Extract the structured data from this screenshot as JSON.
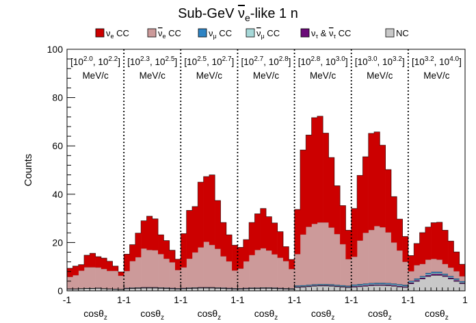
{
  "chart_data": {
    "type": "bar",
    "stacked": true,
    "title_parts": [
      "Sub-GeV ",
      "ν",
      "e",
      "-like 1 n"
    ],
    "ylabel": "Counts",
    "ylim": [
      0,
      100
    ],
    "yticks": [
      "0",
      "20",
      "40",
      "60",
      "80",
      "100"
    ],
    "xlabel_parts": [
      "cosθ",
      "z"
    ],
    "x_edge_labels": [
      "-1",
      "1-1",
      "1-1",
      "1-1",
      "1-1",
      "1-1",
      "1-1",
      "1"
    ],
    "bins_per_panel": 10,
    "panels": [
      {
        "range": "[10^2.0, 10^2.2]",
        "lo_base": "[10",
        "lo_exp": "2.0",
        "hi_base": ", 10",
        "hi_exp": "2.2",
        "close": "]",
        "unit": "MeV/c"
      },
      {
        "range": "[10^2.3, 10^2.5]",
        "lo_base": "[10",
        "lo_exp": "2.3",
        "hi_base": ", 10",
        "hi_exp": "2.5",
        "close": "]",
        "unit": "MeV/c"
      },
      {
        "range": "[10^2.5, 10^2.7]",
        "lo_base": "[10",
        "lo_exp": "2.5",
        "hi_base": ", 10",
        "hi_exp": "2.7",
        "close": "]",
        "unit": "MeV/c"
      },
      {
        "range": "[10^2.7, 10^2.8]",
        "lo_base": "[10",
        "lo_exp": "2.7",
        "hi_base": ", 10",
        "hi_exp": "2.8",
        "close": "]",
        "unit": "MeV/c"
      },
      {
        "range": "[10^2.8, 10^3.0]",
        "lo_base": "[10",
        "lo_exp": "2.8",
        "hi_base": ", 10",
        "hi_exp": "3.0",
        "close": "]",
        "unit": "MeV/c"
      },
      {
        "range": "[10^3.0, 10^3.2]",
        "lo_base": "[10",
        "lo_exp": "3.0",
        "hi_base": ", 10",
        "hi_exp": "3.2",
        "close": "]",
        "unit": "MeV/c"
      },
      {
        "range": "[10^3.2, 10^4.0]",
        "lo_base": "[10",
        "lo_exp": "3.2",
        "hi_base": ", 10",
        "hi_exp": "4.0",
        "close": "]",
        "unit": "MeV/c"
      }
    ],
    "series": [
      {
        "name": "NC",
        "label_parts": [
          "NC"
        ],
        "color": "#c8c8c8",
        "values": [
          0.8,
          0.8,
          0.9,
          1.0,
          1.0,
          1.1,
          0.9,
          0.8,
          0.7,
          0.6,
          0.9,
          1.0,
          1.1,
          1.2,
          1.2,
          1.2,
          1.1,
          1.0,
          0.9,
          0.8,
          0.9,
          1.0,
          1.1,
          1.2,
          1.2,
          1.2,
          1.1,
          1.0,
          0.9,
          0.8,
          0.8,
          0.9,
          1.0,
          1.0,
          1.1,
          1.1,
          1.0,
          0.9,
          0.8,
          0.7,
          1.5,
          1.6,
          1.8,
          2.0,
          2.1,
          2.1,
          2.0,
          1.8,
          1.6,
          1.4,
          1.6,
          1.8,
          2.0,
          2.2,
          2.3,
          2.3,
          2.2,
          2.0,
          1.7,
          1.5,
          3.0,
          4.0,
          5.0,
          6.0,
          6.5,
          6.5,
          6.0,
          5.0,
          4.0,
          3.0
        ]
      },
      {
        "name": "ν̄_τ + ν_τ CC",
        "label_parts": [
          "ν",
          "τ",
          " & ",
          "ν",
          "τ",
          " CC"
        ],
        "color": "#6a0a78",
        "values": [
          0.05,
          0.05,
          0.05,
          0.05,
          0.05,
          0.05,
          0.05,
          0.05,
          0.05,
          0.05,
          0.1,
          0.1,
          0.1,
          0.1,
          0.1,
          0.1,
          0.1,
          0.1,
          0.1,
          0.1,
          0.1,
          0.1,
          0.1,
          0.1,
          0.1,
          0.1,
          0.1,
          0.1,
          0.1,
          0.1,
          0.1,
          0.1,
          0.1,
          0.1,
          0.1,
          0.1,
          0.1,
          0.1,
          0.1,
          0.1,
          0.2,
          0.2,
          0.2,
          0.2,
          0.2,
          0.2,
          0.2,
          0.2,
          0.2,
          0.2,
          0.3,
          0.3,
          0.3,
          0.3,
          0.3,
          0.3,
          0.3,
          0.3,
          0.3,
          0.3,
          0.4,
          0.4,
          0.4,
          0.5,
          0.5,
          0.5,
          0.4,
          0.4,
          0.4,
          0.3
        ]
      },
      {
        "name": "ν̄_μ CC",
        "label_parts": [
          "ν",
          "μ",
          " CC"
        ],
        "color": "#a6d8d8",
        "values": [
          0.05,
          0.05,
          0.05,
          0.05,
          0.05,
          0.05,
          0.05,
          0.05,
          0.05,
          0.05,
          0.1,
          0.1,
          0.1,
          0.1,
          0.1,
          0.1,
          0.1,
          0.1,
          0.1,
          0.1,
          0.1,
          0.1,
          0.1,
          0.1,
          0.1,
          0.1,
          0.1,
          0.1,
          0.1,
          0.1,
          0.1,
          0.1,
          0.1,
          0.1,
          0.1,
          0.1,
          0.1,
          0.1,
          0.1,
          0.1,
          0.2,
          0.2,
          0.2,
          0.2,
          0.2,
          0.2,
          0.2,
          0.2,
          0.2,
          0.2,
          0.3,
          0.3,
          0.3,
          0.3,
          0.3,
          0.3,
          0.3,
          0.3,
          0.3,
          0.3,
          0.3,
          0.3,
          0.3,
          0.4,
          0.4,
          0.4,
          0.3,
          0.3,
          0.3,
          0.3
        ]
      },
      {
        "name": "ν_μ CC",
        "label_parts": [
          "ν",
          "μ",
          " CC"
        ],
        "color": "#2e84c4",
        "values": [
          0.05,
          0.05,
          0.05,
          0.05,
          0.05,
          0.05,
          0.05,
          0.05,
          0.05,
          0.05,
          0.1,
          0.1,
          0.1,
          0.1,
          0.1,
          0.1,
          0.1,
          0.1,
          0.1,
          0.1,
          0.1,
          0.1,
          0.1,
          0.1,
          0.1,
          0.1,
          0.1,
          0.1,
          0.1,
          0.1,
          0.1,
          0.1,
          0.1,
          0.1,
          0.1,
          0.1,
          0.1,
          0.1,
          0.1,
          0.1,
          0.3,
          0.3,
          0.3,
          0.3,
          0.3,
          0.3,
          0.3,
          0.3,
          0.3,
          0.3,
          0.4,
          0.4,
          0.4,
          0.4,
          0.4,
          0.4,
          0.4,
          0.4,
          0.4,
          0.4,
          0.4,
          0.4,
          0.4,
          0.5,
          0.5,
          0.5,
          0.4,
          0.4,
          0.4,
          0.4
        ]
      },
      {
        "name": "ν̄_e CC",
        "label_parts": [
          "ν",
          "e",
          " CC"
        ],
        "color": "#cc9a9a",
        "values": [
          4.8,
          5.5,
          7.3,
          8.6,
          8.6,
          8.4,
          8.0,
          7.3,
          7.4,
          5.5,
          7.0,
          11.0,
          12.5,
          16.0,
          15.4,
          15.3,
          13.8,
          12.0,
          10.6,
          7.5,
          8.5,
          12.0,
          14.5,
          16.5,
          18.8,
          17.5,
          16.0,
          13.0,
          11.0,
          7.3,
          8.1,
          11.0,
          13.5,
          15.6,
          16.2,
          15.3,
          13.8,
          12.5,
          11.2,
          8.0,
          13.0,
          21.0,
          24.0,
          25.0,
          25.5,
          25.5,
          23.5,
          21.0,
          17.0,
          11.0,
          11.5,
          18.0,
          21.0,
          22.0,
          23.5,
          23.0,
          21.0,
          17.0,
          14.0,
          9.5,
          4.0,
          5.5,
          5.0,
          5.5,
          5.3,
          5.0,
          4.0,
          3.5,
          3.0,
          2.0
        ]
      },
      {
        "name": "ν_e CC",
        "label_parts": [
          "ν",
          "e",
          " CC"
        ],
        "color": "#cc0000",
        "values": [
          3.6,
          3.8,
          2.5,
          5.0,
          5.8,
          4.5,
          4.5,
          4.0,
          2.0,
          1.6,
          7.0,
          6.8,
          10.0,
          11.5,
          14.0,
          13.0,
          8.0,
          7.5,
          5.0,
          4.5,
          14.0,
          20.0,
          19.0,
          27.0,
          27.0,
          29.0,
          20.0,
          14.0,
          11.0,
          10.5,
          8.8,
          9.0,
          13.5,
          15.0,
          16.5,
          14.0,
          13.0,
          10.8,
          6.0,
          4.0,
          18.5,
          35.0,
          38.0,
          44.0,
          44.0,
          37.0,
          29.0,
          20.0,
          16.0,
          12.0,
          20.0,
          27.0,
          31.5,
          40.0,
          39.0,
          34.0,
          26.0,
          19.0,
          13.0,
          10.5,
          6.5,
          9.0,
          13.0,
          13.5,
          15.0,
          15.5,
          14.0,
          11.0,
          8.0,
          5.0
        ]
      }
    ],
    "legend_order": [
      5,
      4,
      3,
      2,
      1,
      0
    ]
  }
}
